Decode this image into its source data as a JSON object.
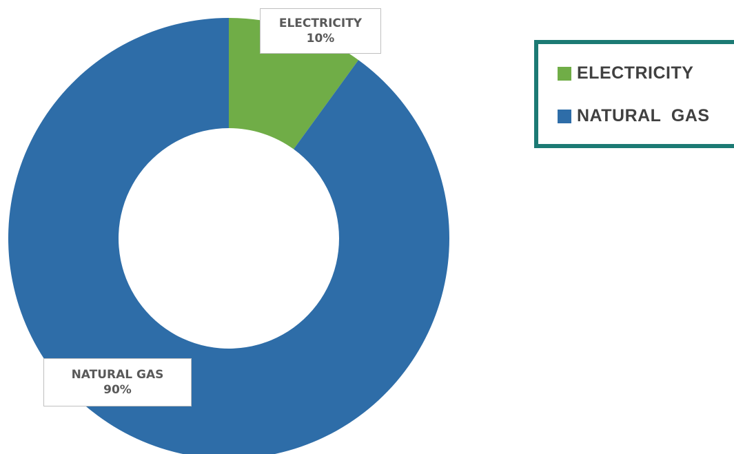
{
  "chart_data": {
    "type": "pie",
    "variant": "donut",
    "series": [
      {
        "name": "ELECTRICITY",
        "value": 10,
        "percent_label": "10%",
        "color": "#70ad47"
      },
      {
        "name": "NATURAL GAS",
        "value": 90,
        "percent_label": "90%",
        "color": "#2e6da8"
      }
    ],
    "legend": {
      "placement": "top-right",
      "items": [
        "ELECTRICITY",
        "NATURAL  GAS"
      ],
      "border_color": "#1c7a74"
    }
  }
}
